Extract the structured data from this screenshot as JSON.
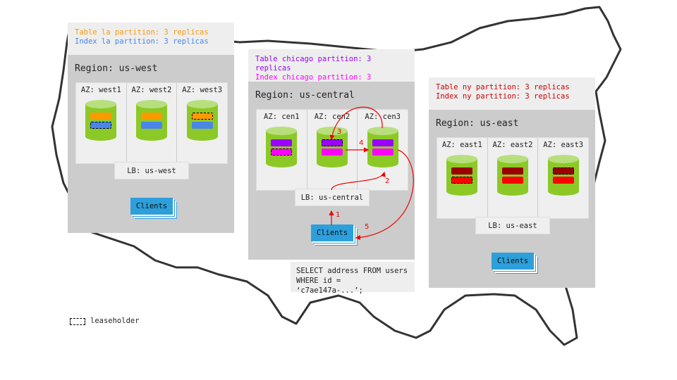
{
  "regions": [
    {
      "id": "us-west",
      "label": "Region: us-west",
      "partition_lines": [
        {
          "text": "Table la partition: 3 replicas",
          "color": "#ff9900"
        },
        {
          "text": "Index la partition: 3 replicas",
          "color": "#4a86e8"
        }
      ],
      "bar_colors": [
        "#ff9900",
        "#4a86e8"
      ],
      "azs": [
        {
          "label": "AZ: west1",
          "leaseholder": [
            false,
            true
          ]
        },
        {
          "label": "AZ: west2",
          "leaseholder": [
            false,
            false
          ]
        },
        {
          "label": "AZ: west3",
          "leaseholder": [
            true,
            false
          ]
        }
      ],
      "lb": "LB: us-west",
      "clients": "Clients"
    },
    {
      "id": "us-central",
      "label": "Region: us-central",
      "partition_lines": [
        {
          "text": "Table chicago partition: 3 replicas",
          "color": "#9900ff"
        },
        {
          "text": "Index chicago partition: 3 replicas",
          "color": "#ff00ff"
        }
      ],
      "bar_colors": [
        "#9900ff",
        "#ff00ff"
      ],
      "azs": [
        {
          "label": "AZ: cen1",
          "leaseholder": [
            false,
            true
          ]
        },
        {
          "label": "AZ: cen2",
          "leaseholder": [
            true,
            false
          ]
        },
        {
          "label": "AZ: cen3",
          "leaseholder": [
            false,
            false
          ]
        }
      ],
      "lb": "LB: us-central",
      "clients": "Clients"
    },
    {
      "id": "us-east",
      "label": "Region: us-east",
      "partition_lines": [
        {
          "text": "Table ny partition: 3 replicas",
          "color": "#cc0000"
        },
        {
          "text": "Index ny partition: 3 replicas",
          "color": "#cc0000"
        }
      ],
      "bar_colors": [
        "#990000",
        "#ff0000"
      ],
      "azs": [
        {
          "label": "AZ: east1",
          "leaseholder": [
            false,
            true
          ]
        },
        {
          "label": "AZ: east2",
          "leaseholder": [
            false,
            false
          ]
        },
        {
          "label": "AZ: east3",
          "leaseholder": [
            true,
            false
          ]
        }
      ],
      "lb": "LB: us-east",
      "clients": "Clients"
    }
  ],
  "query": {
    "line1": "SELECT address FROM users",
    "line2": "WHERE id = ‘c7ae147a-...’;"
  },
  "flow_steps": [
    "1",
    "2",
    "3",
    "4",
    "5"
  ],
  "arrow_color": "#ee0000",
  "legend": {
    "label": "leaseholder"
  }
}
